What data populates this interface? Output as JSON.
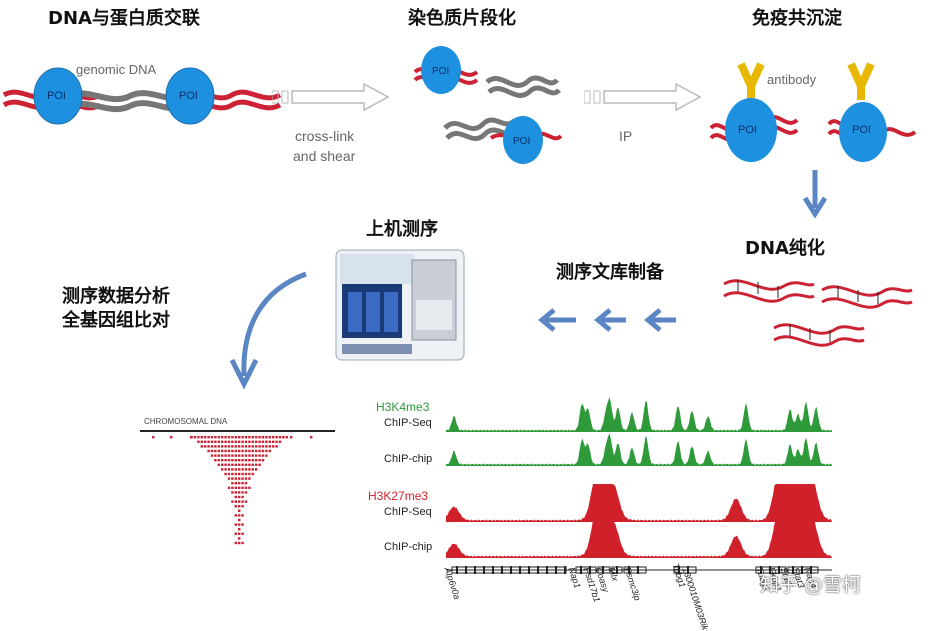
{
  "titles": {
    "crosslink": "DNA与蛋白质交联",
    "fragment": "染色质片段化",
    "ip": "免疫共沉淀",
    "sequencing": "上机测序",
    "purify": "DNA纯化",
    "library": "测序文库制备",
    "analysis_line1": "测序数据分析",
    "analysis_line2": "全基因组比对"
  },
  "labels": {
    "genomic_dna": "genomic DNA",
    "poi": "POI",
    "arrow1_line1": "cross-link",
    "arrow1_line2": "and shear",
    "arrow2": "IP",
    "antibody": "antibody",
    "chromosomal_dna": "CHROMOSOMAL DNA"
  },
  "tracks": [
    {
      "mark": "H3K4me3",
      "method": "ChIP-Seq",
      "color": "#2e9a3a"
    },
    {
      "mark": "",
      "method": "ChIP-chip",
      "color": "#2e9a3a"
    },
    {
      "mark": "H3K27me3",
      "method": "ChIP-Seq",
      "color": "#d0202a"
    },
    {
      "mark": "",
      "method": "ChIP-chip",
      "color": "#d0202a"
    }
  ],
  "genes": [
    "Atp6v0a",
    "Nap1",
    "Hsd17b1",
    "Coasy",
    "Mlx",
    "Psmc3ip",
    "Tubg1",
    "1300010M03Rik",
    "Tubg1",
    "Fkbp1",
    "Stat5",
    "Stat3",
    "Nap4"
  ],
  "watermark": "知乎 @雪柯",
  "colors": {
    "protein": "#1e90e0",
    "dna_red": "#cc2233",
    "dna_grey": "#777777",
    "antibody": "#e8b800",
    "arrow_blue": "#5b86c4",
    "green": "#2e9a3a",
    "red": "#d0202a"
  }
}
